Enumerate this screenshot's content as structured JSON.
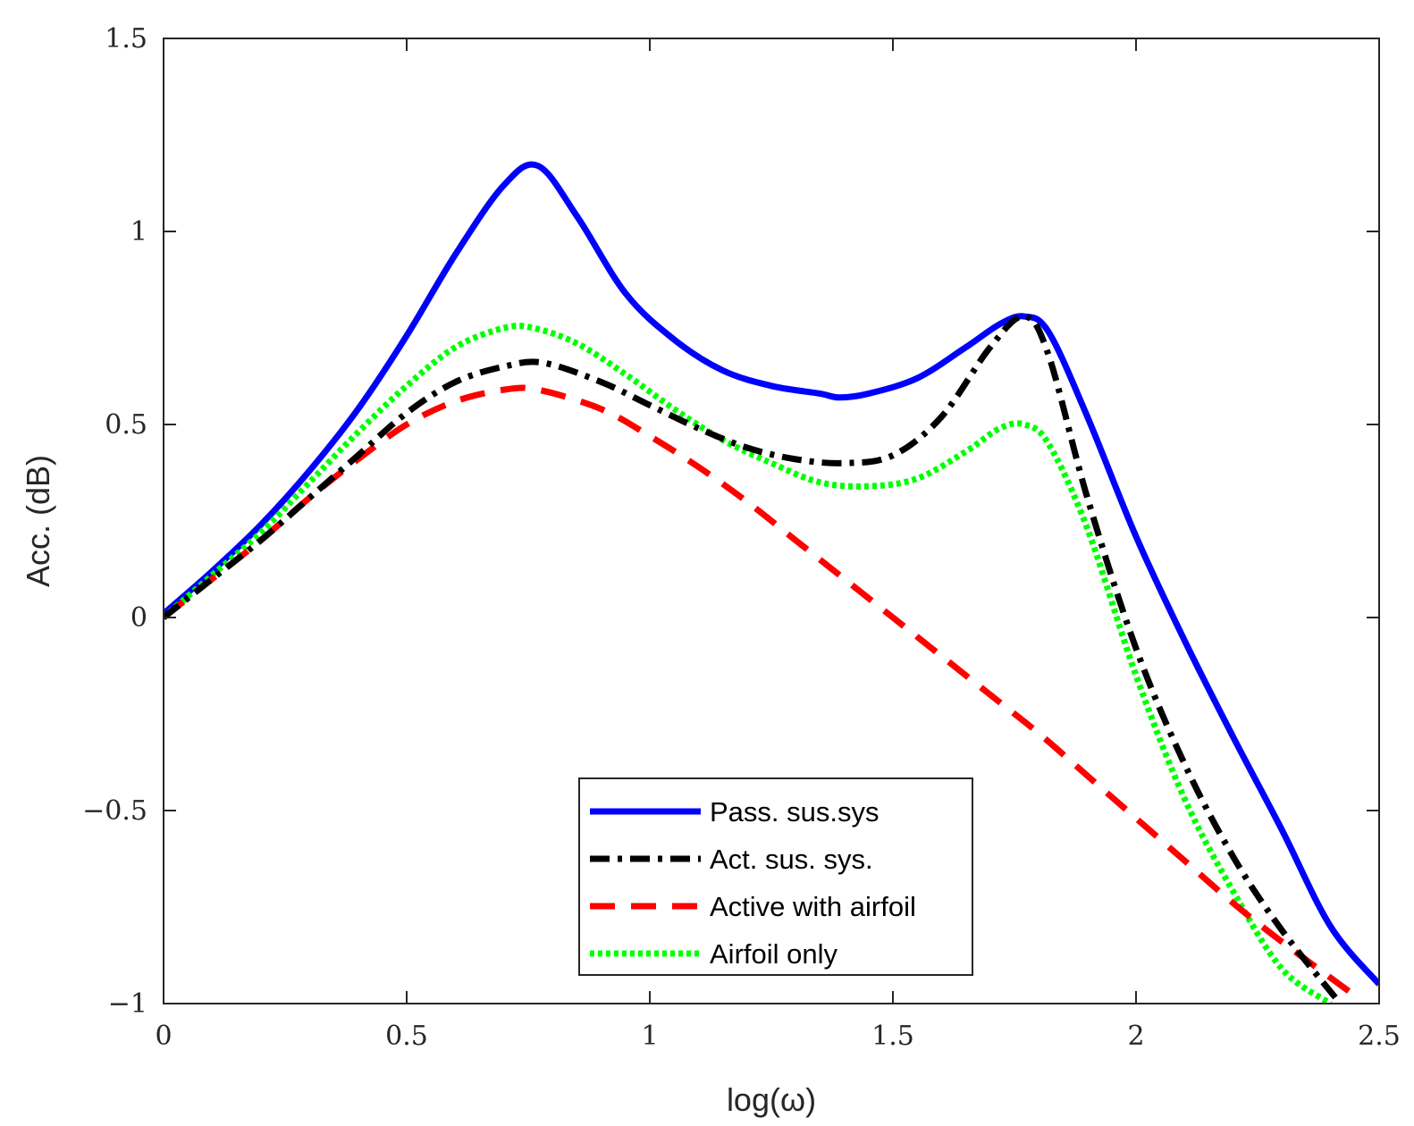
{
  "chart_data": {
    "type": "line",
    "title": "",
    "xlabel": "log(ω)",
    "ylabel": "Acc. (dB)",
    "xlim": [
      0,
      2.5
    ],
    "ylim": [
      -1,
      1.5
    ],
    "xticks": [
      0,
      0.5,
      1,
      1.5,
      2,
      2.5
    ],
    "xtick_labels": [
      "0",
      "0.5",
      "1",
      "1.5",
      "2",
      "2.5"
    ],
    "yticks": [
      -1,
      -0.5,
      0,
      0.5,
      1,
      1.5
    ],
    "ytick_labels": [
      "−1",
      "−0.5",
      "0",
      "0.5",
      "1",
      "1.5"
    ],
    "grid": false,
    "legend_position": "bottom-center",
    "series": [
      {
        "name": "Pass. sus.sys",
        "color": "#0000ff",
        "style": "solid",
        "x": [
          0,
          0.1,
          0.2,
          0.3,
          0.4,
          0.5,
          0.6,
          0.7,
          0.77,
          0.85,
          0.95,
          1.05,
          1.15,
          1.25,
          1.35,
          1.39,
          1.45,
          1.55,
          1.65,
          1.72,
          1.77,
          1.82,
          1.9,
          2.0,
          2.1,
          2.2,
          2.3,
          2.4,
          2.5
        ],
        "y": [
          0.01,
          0.12,
          0.24,
          0.38,
          0.54,
          0.73,
          0.94,
          1.12,
          1.17,
          1.04,
          0.84,
          0.72,
          0.64,
          0.6,
          0.58,
          0.57,
          0.58,
          0.62,
          0.7,
          0.76,
          0.78,
          0.74,
          0.52,
          0.21,
          -0.06,
          -0.31,
          -0.55,
          -0.8,
          -0.95
        ]
      },
      {
        "name": "Act. sus. sys.",
        "color": "#000000",
        "style": "dashdot",
        "x": [
          0,
          0.1,
          0.2,
          0.3,
          0.4,
          0.5,
          0.6,
          0.7,
          0.78,
          0.9,
          1.0,
          1.1,
          1.2,
          1.3,
          1.4,
          1.5,
          1.6,
          1.7,
          1.77,
          1.82,
          1.9,
          2.0,
          2.1,
          2.2,
          2.3,
          2.42
        ],
        "y": [
          0.0,
          0.1,
          0.2,
          0.31,
          0.42,
          0.53,
          0.61,
          0.65,
          0.66,
          0.61,
          0.55,
          0.49,
          0.44,
          0.41,
          0.4,
          0.42,
          0.52,
          0.7,
          0.78,
          0.68,
          0.31,
          -0.08,
          -0.38,
          -0.62,
          -0.81,
          -1.0
        ]
      },
      {
        "name": "Active with airfoil",
        "color": "#ff0000",
        "style": "dashed",
        "x": [
          0,
          0.1,
          0.2,
          0.3,
          0.4,
          0.5,
          0.6,
          0.7,
          0.77,
          0.9,
          1.0,
          1.1,
          1.2,
          1.3,
          1.4,
          1.5,
          1.6,
          1.7,
          1.8,
          1.9,
          2.0,
          2.1,
          2.2,
          2.3,
          2.44
        ],
        "y": [
          0.0,
          0.1,
          0.2,
          0.31,
          0.41,
          0.5,
          0.56,
          0.59,
          0.59,
          0.54,
          0.47,
          0.39,
          0.3,
          0.2,
          0.1,
          0.0,
          -0.1,
          -0.2,
          -0.3,
          -0.41,
          -0.52,
          -0.63,
          -0.74,
          -0.84,
          -0.97
        ]
      },
      {
        "name": "Airfoil only",
        "color": "#00ff00",
        "style": "dotted",
        "x": [
          0,
          0.1,
          0.2,
          0.3,
          0.4,
          0.5,
          0.6,
          0.7,
          0.76,
          0.85,
          0.95,
          1.05,
          1.15,
          1.25,
          1.35,
          1.45,
          1.55,
          1.65,
          1.72,
          1.77,
          1.82,
          1.9,
          2.0,
          2.1,
          2.2,
          2.3,
          2.4
        ],
        "y": [
          0.0,
          0.11,
          0.22,
          0.35,
          0.48,
          0.6,
          0.7,
          0.75,
          0.75,
          0.71,
          0.63,
          0.54,
          0.46,
          0.4,
          0.35,
          0.34,
          0.36,
          0.43,
          0.49,
          0.5,
          0.45,
          0.23,
          -0.15,
          -0.47,
          -0.71,
          -0.91,
          -1.0
        ]
      }
    ]
  }
}
